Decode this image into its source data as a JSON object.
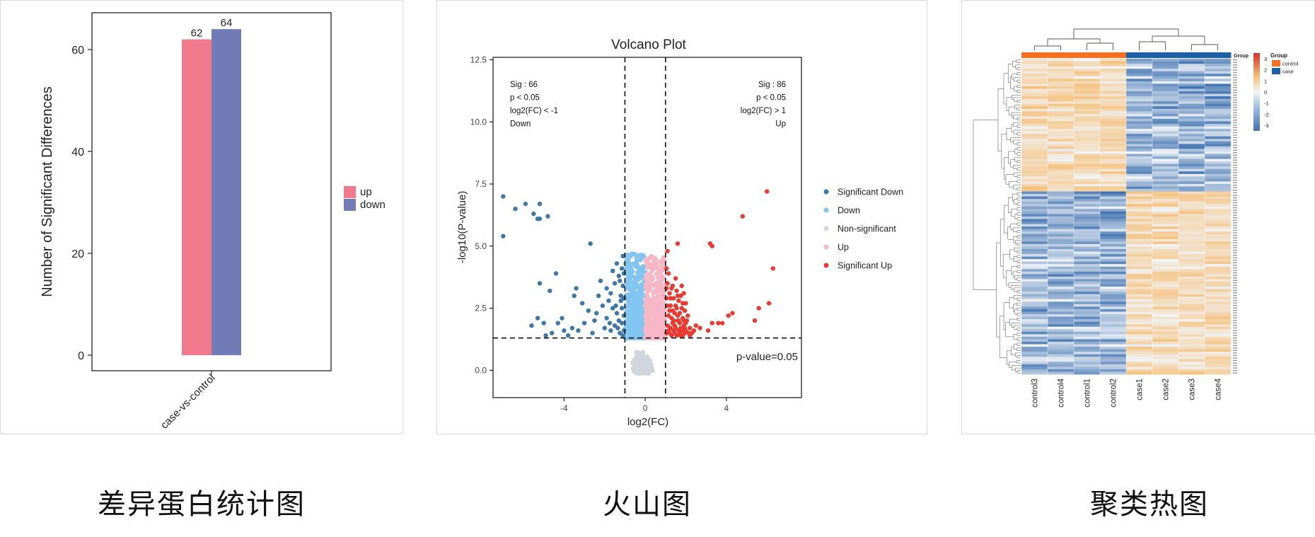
{
  "captions": {
    "left": "差异蛋白统计图",
    "middle": "火山图",
    "right": "聚类热图"
  },
  "colors": {
    "up": "#f07a8b",
    "down": "#717bb5",
    "sig_down": "#3d78a9",
    "down_light": "#82c5f0",
    "nonsig": "#d1d5dc",
    "up_light": "#f8b7c6",
    "sig_up": "#ea3b33",
    "heat_high": "#d73027",
    "heat_mid": "#ffffff",
    "heat_low": "#4575b4",
    "group_control": "#f36f21",
    "group_case": "#1f5fa6"
  },
  "chart_data": [
    {
      "type": "bar",
      "title": "",
      "xlabel": "",
      "ylabel": "Number of Significant Differences",
      "categories": [
        "case-vs-control"
      ],
      "series": [
        {
          "name": "up",
          "values": [
            62
          ]
        },
        {
          "name": "down",
          "values": [
            64
          ]
        }
      ],
      "ylim": [
        0,
        66
      ],
      "yticks": [
        0,
        20,
        40,
        60
      ],
      "data_labels": [
        "62",
        "64"
      ],
      "legend": {
        "placement": "right",
        "entries": [
          "up",
          "down"
        ]
      }
    },
    {
      "type": "scatter",
      "title": "Volcano Plot",
      "xlabel": "log2(FC)",
      "ylabel": "-log10(P-value)",
      "xlim": [
        -7.5,
        7.7
      ],
      "ylim": [
        -1.1,
        12.6
      ],
      "xticks": [
        -4,
        0,
        4
      ],
      "ytick_labels": [
        "0.0",
        "2.5",
        "5.0",
        "7.5",
        "10.0",
        "12.5"
      ],
      "thresholds": {
        "x": [
          -1,
          1
        ],
        "y": 1.3
      },
      "threshold_label": "p-value=0.05",
      "annotations": {
        "left": [
          "Sig : 66",
          "p < 0.05",
          "log2(FC) < -1",
          "Down"
        ],
        "right": [
          "Sig : 86",
          "p < 0.05",
          "log2(FC) > 1",
          "Up"
        ]
      },
      "legend": {
        "placement": "right",
        "entries": [
          "Significant Down",
          "Down",
          "Non-significant",
          "Up",
          "Significant Up"
        ]
      },
      "series": [
        {
          "name": "Significant Down",
          "points": [
            [
              -7.0,
              7.0
            ],
            [
              -7.0,
              5.4
            ],
            [
              -6.4,
              6.5
            ],
            [
              -5.9,
              6.7
            ],
            [
              -5.5,
              6.3
            ],
            [
              -5.3,
              6.1
            ],
            [
              -5.2,
              6.7
            ],
            [
              -5.2,
              6.1
            ],
            [
              -4.8,
              6.2
            ],
            [
              -2.7,
              5.1
            ],
            [
              -4.4,
              3.9
            ],
            [
              -5.2,
              3.5
            ],
            [
              -4.7,
              3.2
            ],
            [
              -3.4,
              3.3
            ],
            [
              -3.5,
              3.0
            ],
            [
              -3.1,
              2.7
            ],
            [
              -2.4,
              2.3
            ],
            [
              -2.1,
              2.6
            ],
            [
              -1.9,
              3.3
            ],
            [
              -1.8,
              2.8
            ],
            [
              -1.6,
              2.5
            ],
            [
              -1.5,
              3.5
            ],
            [
              -1.4,
              4.3
            ],
            [
              -1.3,
              3.8
            ],
            [
              -1.2,
              3.0
            ],
            [
              -1.15,
              2.5
            ],
            [
              -1.1,
              4.6
            ],
            [
              -1.05,
              3.9
            ],
            [
              -1.3,
              2.0
            ],
            [
              -1.5,
              1.8
            ],
            [
              -2.5,
              2.0
            ],
            [
              -3.0,
              1.9
            ],
            [
              -3.6,
              1.7
            ],
            [
              -4.0,
              1.6
            ],
            [
              -4.3,
              1.9
            ],
            [
              -4.6,
              1.5
            ],
            [
              -5.0,
              1.9
            ],
            [
              -5.3,
              2.1
            ],
            [
              -2.0,
              1.7
            ],
            [
              -1.7,
              1.6
            ],
            [
              -1.25,
              1.5
            ],
            [
              -1.1,
              1.4
            ],
            [
              -1.05,
              2.2
            ],
            [
              -1.1,
              3.4
            ],
            [
              -1.2,
              2.8
            ],
            [
              -1.4,
              2.3
            ],
            [
              -2.8,
              2.4
            ],
            [
              -3.8,
              1.4
            ],
            [
              -4.1,
              2.1
            ],
            [
              -1.6,
              4.0
            ],
            [
              -2.2,
              3.6
            ],
            [
              -1.9,
              2.1
            ],
            [
              -1.35,
              1.7
            ],
            [
              -1.05,
              1.6
            ],
            [
              -1.15,
              4.1
            ],
            [
              -1.45,
              2.6
            ],
            [
              -2.6,
              1.5
            ],
            [
              -3.3,
              1.6
            ],
            [
              -1.7,
              3.1
            ],
            [
              -1.25,
              3.6
            ],
            [
              -1.05,
              2.9
            ],
            [
              -1.15,
              1.9
            ],
            [
              -5.6,
              1.8
            ],
            [
              -4.9,
              1.4
            ],
            [
              -2.3,
              3.0
            ],
            [
              -1.75,
              1.9
            ]
          ]
        },
        {
          "name": "Down",
          "points": []
        },
        {
          "name": "Non-significant",
          "points": []
        },
        {
          "name": "Up",
          "points": []
        },
        {
          "name": "Significant Up",
          "points": [
            [
              6.0,
              7.2
            ],
            [
              4.8,
              6.2
            ],
            [
              6.3,
              4.1
            ],
            [
              3.2,
              5.1
            ],
            [
              3.3,
              5.0
            ],
            [
              1.6,
              5.1
            ],
            [
              1.1,
              4.8
            ],
            [
              6.1,
              2.7
            ],
            [
              5.6,
              2.5
            ],
            [
              5.4,
              2.0
            ],
            [
              4.3,
              2.3
            ],
            [
              4.1,
              2.2
            ],
            [
              3.8,
              1.9
            ],
            [
              3.6,
              1.9
            ],
            [
              3.3,
              1.9
            ],
            [
              3.1,
              1.6
            ],
            [
              2.7,
              1.7
            ],
            [
              2.2,
              1.4
            ],
            [
              2.0,
              2.7
            ],
            [
              1.9,
              1.8
            ],
            [
              1.8,
              3.4
            ],
            [
              1.7,
              2.3
            ],
            [
              1.6,
              2.0
            ],
            [
              1.5,
              3.7
            ],
            [
              1.4,
              2.9
            ],
            [
              1.3,
              3.3
            ],
            [
              1.2,
              2.4
            ],
            [
              1.1,
              1.8
            ],
            [
              1.05,
              2.9
            ],
            [
              1.1,
              3.5
            ],
            [
              1.2,
              1.5
            ],
            [
              1.3,
              2.1
            ],
            [
              1.4,
              1.6
            ],
            [
              1.5,
              2.6
            ],
            [
              1.6,
              3.0
            ],
            [
              1.7,
              1.5
            ],
            [
              1.8,
              2.5
            ],
            [
              1.9,
              3.1
            ],
            [
              2.0,
              1.6
            ],
            [
              2.1,
              2.2
            ],
            [
              2.3,
              1.5
            ],
            [
              2.5,
              1.8
            ],
            [
              1.05,
              4.1
            ],
            [
              1.15,
              3.9
            ],
            [
              1.25,
              2.6
            ],
            [
              1.35,
              1.9
            ],
            [
              1.45,
              2.3
            ],
            [
              1.55,
              1.4
            ],
            [
              1.65,
              2.8
            ],
            [
              1.75,
              1.7
            ],
            [
              1.85,
              2.1
            ],
            [
              1.95,
              1.5
            ],
            [
              1.05,
              1.5
            ],
            [
              1.15,
              2.2
            ],
            [
              1.25,
              1.7
            ],
            [
              1.35,
              3.4
            ],
            [
              1.45,
              1.5
            ],
            [
              1.55,
              2.5
            ],
            [
              1.65,
              1.6
            ],
            [
              1.75,
              3.0
            ],
            [
              1.85,
              1.4
            ],
            [
              1.95,
              2.4
            ],
            [
              1.1,
              2.6
            ],
            [
              1.2,
              3.1
            ],
            [
              1.3,
              1.4
            ],
            [
              1.4,
              2.0
            ],
            [
              1.5,
              1.7
            ],
            [
              1.6,
              2.2
            ],
            [
              1.7,
              1.9
            ],
            [
              1.8,
              1.6
            ],
            [
              1.9,
              2.0
            ],
            [
              2.0,
              1.9
            ],
            [
              2.2,
              1.7
            ],
            [
              2.4,
              1.6
            ],
            [
              1.05,
              3.3
            ],
            [
              1.15,
              1.6
            ],
            [
              1.25,
              2.9
            ],
            [
              1.35,
              2.4
            ],
            [
              1.45,
              1.8
            ],
            [
              1.55,
              3.2
            ],
            [
              1.65,
              2.0
            ],
            [
              1.75,
              1.4
            ],
            [
              1.85,
              2.7
            ],
            [
              1.95,
              1.7
            ],
            [
              2.05,
              2.0
            ],
            [
              2.15,
              1.5
            ]
          ]
        }
      ]
    },
    {
      "type": "heatmap",
      "title": "",
      "columns": [
        "control3",
        "control4",
        "control1",
        "control2",
        "case1",
        "case2",
        "case3",
        "case4"
      ],
      "groups": [
        "control",
        "control",
        "control",
        "control",
        "case",
        "case",
        "case",
        "case"
      ],
      "legend_title": "Group",
      "legend_entries": [
        "control",
        "case"
      ],
      "colorbar_ticks": [
        "3",
        "2",
        "1",
        "0",
        "-1",
        "-2",
        "-3"
      ],
      "colorbar_range": [
        -3.5,
        3.5
      ],
      "row_count": 126
    }
  ]
}
